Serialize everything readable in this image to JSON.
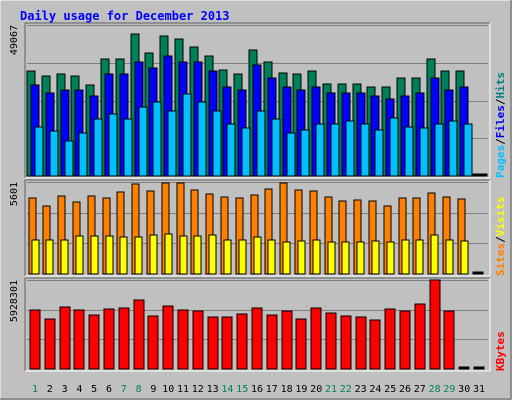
{
  "chart_data": {
    "type": "bar",
    "title": "Daily usage for December 2013",
    "categories": [
      "1",
      "2",
      "3",
      "4",
      "5",
      "6",
      "7",
      "8",
      "9",
      "10",
      "11",
      "12",
      "13",
      "14",
      "15",
      "16",
      "17",
      "18",
      "19",
      "20",
      "21",
      "22",
      "23",
      "24",
      "25",
      "26",
      "27",
      "28",
      "29",
      "30",
      "31"
    ],
    "weekend_days": [
      "1",
      "7",
      "8",
      "14",
      "15",
      "21",
      "22",
      "28",
      "29"
    ],
    "panels": [
      {
        "id": "hits",
        "ymax_label": "49067",
        "ymax": 49067,
        "side_label": [
          "Pages",
          "/",
          "Files",
          "/",
          "Hits"
        ],
        "side_colors": [
          "#00c0ff",
          "#000000",
          "#0000ff",
          "#000000",
          "#008080"
        ],
        "series": [
          {
            "name": "Hits",
            "color": "#00805a",
            "values": [
              34000,
              32500,
              33000,
              32500,
              29500,
              38000,
              38000,
              46000,
              40000,
              45500,
              44500,
              42000,
              39000,
              34500,
              33000,
              41000,
              37000,
              33500,
              33000,
              34000,
              30000,
              30000,
              30000,
              29000,
              29000,
              32000,
              32000,
              38000,
              34000,
              34000,
              0
            ]
          },
          {
            "name": "Files",
            "color": "#0000ff",
            "values": [
              29500,
              27000,
              28000,
              28000,
              26000,
              33000,
              33000,
              37000,
              35000,
              39000,
              37000,
              37000,
              34000,
              29000,
              28000,
              36000,
              32000,
              29000,
              28000,
              29000,
              27000,
              27000,
              27000,
              26000,
              25000,
              26000,
              27000,
              32000,
              28000,
              29000,
              0
            ]
          },
          {
            "name": "Pages",
            "color": "#00c0ff",
            "values": [
              16000,
              14500,
              11500,
              14000,
              18500,
              20000,
              18500,
              22500,
              24000,
              21000,
              26500,
              24000,
              21000,
              17000,
              15500,
              21000,
              18500,
              14000,
              15000,
              17000,
              17000,
              18000,
              17000,
              15000,
              19000,
              16000,
              15500,
              17000,
              18000,
              17000,
              0
            ]
          }
        ]
      },
      {
        "id": "visits",
        "ymax_label": "5601",
        "ymax": 5601,
        "side_label": [
          "Sites",
          "/",
          "Visits"
        ],
        "side_colors": [
          "#ff8000",
          "#000000",
          "#ffff00"
        ],
        "series": [
          {
            "name": "Visits",
            "color": "#ff8000",
            "values": [
              4650,
              4150,
              4750,
              4400,
              4750,
              4600,
              5000,
              5500,
              5050,
              5550,
              5550,
              5100,
              4900,
              4700,
              4650,
              4800,
              5150,
              5550,
              5100,
              5050,
              4700,
              4450,
              4500,
              4450,
              4150,
              4650,
              4600,
              4950,
              4700,
              4550,
              0
            ]
          },
          {
            "name": "Sites",
            "color": "#ffff00",
            "values": [
              2050,
              2100,
              2100,
              2300,
              2300,
              2300,
              2250,
              2250,
              2350,
              2450,
              2300,
              2300,
              2350,
              2100,
              2100,
              2250,
              2100,
              1950,
              2000,
              2050,
              1950,
              1950,
              1950,
              2000,
              1950,
              2100,
              2050,
              2350,
              2050,
              2000,
              0
            ]
          }
        ]
      },
      {
        "id": "kbytes",
        "ymax_label": "5928301",
        "ymax": 5928301,
        "side_label": [
          "KBytes"
        ],
        "side_colors": [
          "#ff0000"
        ],
        "series": [
          {
            "name": "KBytes",
            "color": "#ff0000",
            "values": [
              3950000,
              3350000,
              4150000,
              3950000,
              3600000,
              4000000,
              4050000,
              4600000,
              3500000,
              4200000,
              3900000,
              3850000,
              3450000,
              3450000,
              3650000,
              4050000,
              3600000,
              3850000,
              3300000,
              4050000,
              3750000,
              3550000,
              3450000,
              3250000,
              4000000,
              3850000,
              4350000,
              5928301,
              3850000,
              0,
              0
            ]
          }
        ]
      }
    ]
  },
  "colors": {
    "background": "#c0c0c0",
    "title": "#0000ff",
    "weekday": "#000000",
    "weekend": "#00805a"
  }
}
